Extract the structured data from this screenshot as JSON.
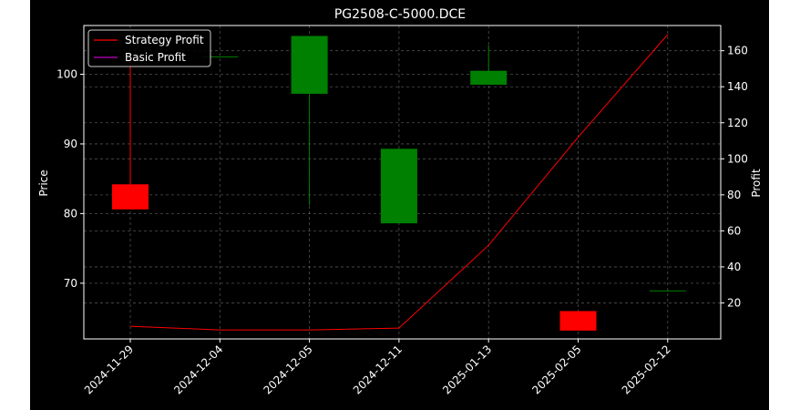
{
  "chart_data": {
    "type": "candlestick",
    "title": "PG2508-C-5000.DCE",
    "xlabel": "",
    "ylabel": "Price",
    "ylabel_right": "Profit",
    "categories": [
      "2024-11-29",
      "2024-12-04",
      "2024-12-05",
      "2024-12-11",
      "2025-01-13",
      "2025-02-05",
      "2025-02-12"
    ],
    "ylim": [
      62,
      107
    ],
    "ylim_right": [
      0,
      174
    ],
    "yticks": [
      70,
      80,
      90,
      100
    ],
    "yticks_right": [
      20,
      40,
      60,
      80,
      100,
      120,
      140,
      160
    ],
    "grid": true,
    "legend_position": "top-left",
    "candles": [
      {
        "date": "2024-11-29",
        "open": 84.2,
        "close": 80.6,
        "high": 102.5,
        "low": 80.6
      },
      {
        "date": "2024-12-04",
        "open": 102.5,
        "close": 102.5,
        "high": 102.5,
        "low": 102.5
      },
      {
        "date": "2024-12-05",
        "open": 97.2,
        "close": 105.5,
        "high": 105.5,
        "low": 81.2
      },
      {
        "date": "2024-12-11",
        "open": 78.6,
        "close": 89.3,
        "high": 89.3,
        "low": 78.6
      },
      {
        "date": "2025-01-13",
        "open": 98.5,
        "close": 100.5,
        "high": 104.2,
        "low": 98.5
      },
      {
        "date": "2025-02-05",
        "open": 66.0,
        "close": 63.2,
        "high": 66.0,
        "low": 63.2
      },
      {
        "date": "2025-02-12",
        "open": 68.9,
        "close": 68.9,
        "high": 68.9,
        "low": 68.9
      }
    ],
    "series": [
      {
        "name": "Strategy Profit",
        "color": "#ff0000",
        "axis": "right",
        "values": [
          7,
          5,
          5,
          6,
          52,
          112,
          169
        ]
      },
      {
        "name": "Basic Profit",
        "color": "#bf00bf",
        "axis": "right",
        "values": [
          0,
          0,
          0,
          0,
          0,
          0,
          0
        ]
      }
    ],
    "up_color": "#008000",
    "down_color": "#ff0000"
  }
}
